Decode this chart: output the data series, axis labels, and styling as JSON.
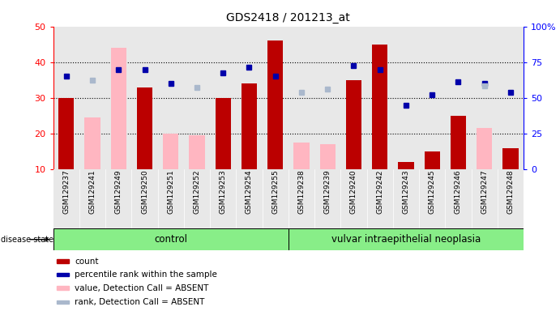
{
  "title": "GDS2418 / 201213_at",
  "samples": [
    "GSM129237",
    "GSM129241",
    "GSM129249",
    "GSM129250",
    "GSM129251",
    "GSM129252",
    "GSM129253",
    "GSM129254",
    "GSM129255",
    "GSM129238",
    "GSM129239",
    "GSM129240",
    "GSM129242",
    "GSM129243",
    "GSM129245",
    "GSM129246",
    "GSM129247",
    "GSM129248"
  ],
  "count_values": [
    30,
    null,
    null,
    33,
    null,
    null,
    30,
    34,
    46,
    null,
    null,
    35,
    45,
    12,
    15,
    25,
    null,
    16
  ],
  "absent_value": [
    null,
    24.5,
    44,
    null,
    20,
    19.5,
    null,
    null,
    null,
    17.5,
    17,
    null,
    null,
    null,
    null,
    null,
    21.5,
    null
  ],
  "percentile_rank": [
    36,
    null,
    38,
    38,
    34,
    null,
    37,
    38.5,
    36,
    null,
    null,
    39,
    38,
    28,
    31,
    34.5,
    34,
    31.5
  ],
  "absent_rank": [
    null,
    35,
    null,
    null,
    null,
    33,
    null,
    null,
    null,
    31.5,
    32.5,
    null,
    null,
    null,
    null,
    null,
    33.5,
    null
  ],
  "group": [
    "control",
    "control",
    "control",
    "control",
    "control",
    "control",
    "control",
    "control",
    "control",
    "disease",
    "disease",
    "disease",
    "disease",
    "disease",
    "disease",
    "disease",
    "disease",
    "disease"
  ],
  "ylim_left": [
    10,
    50
  ],
  "ylim_right": [
    0,
    100
  ],
  "y_ticks_left": [
    10,
    20,
    30,
    40,
    50
  ],
  "y_ticks_right": [
    0,
    25,
    50,
    75,
    100
  ],
  "bar_color_red": "#bb0000",
  "bar_color_pink": "#ffb6c1",
  "dot_color_blue": "#0000aa",
  "dot_color_lightblue": "#aab8cc",
  "control_label": "control",
  "disease_label": "vulvar intraepithelial neoplasia",
  "group_color": "#88ee88",
  "legend_items": [
    "count",
    "percentile rank within the sample",
    "value, Detection Call = ABSENT",
    "rank, Detection Call = ABSENT"
  ],
  "legend_colors": [
    "#bb0000",
    "#0000aa",
    "#ffb6c1",
    "#aab8cc"
  ],
  "bg_color": "#e8e8e8",
  "plot_bg": "#ffffff"
}
